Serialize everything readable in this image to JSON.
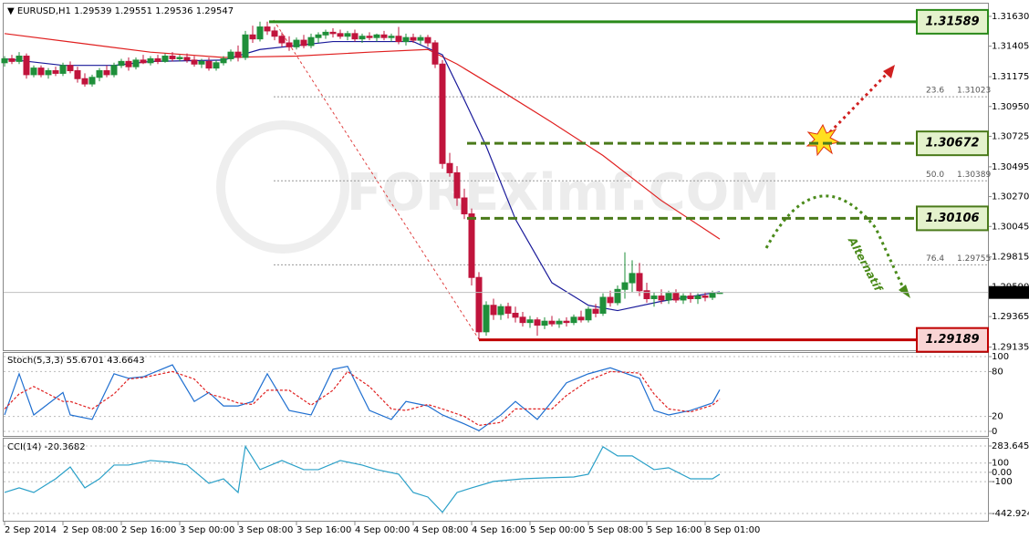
{
  "chart_data": [
    {
      "type": "candlestick",
      "title": "EURUSD,H1",
      "up_color": "#1f8f3a",
      "down_color": "#c0143c",
      "ylim": [
        1.29118,
        1.31719
      ],
      "yticks": [
        {
          "value": 1.3163,
          "label": "1.31630"
        },
        1.31405,
        1.31175,
        {
          "value": 1.3095,
          "label": "1.30950"
        },
        1.30725,
        1.30495,
        {
          "value": 1.3027,
          "label": "1.30270"
        },
        1.30045,
        1.29815,
        {
          "value": 1.2959,
          "label": "1.29590"
        },
        1.29365,
        1.29135
      ],
      "xticks": [
        {
          "value": 0,
          "label": "2 Sep 2014"
        },
        {
          "value": 8,
          "label": "2 Sep 08:00"
        },
        {
          "value": 16,
          "label": "2 Sep 16:00"
        },
        {
          "value": 24,
          "label": "3 Sep 00:00"
        },
        {
          "value": 32,
          "label": "3 Sep 08:00"
        },
        {
          "value": 40,
          "label": "3 Sep 16:00"
        },
        {
          "value": 48,
          "label": "4 Sep 00:00"
        },
        {
          "value": 56,
          "label": "4 Sep 08:00"
        },
        {
          "value": 64,
          "label": "4 Sep 16:00"
        },
        {
          "value": 72,
          "label": "5 Sep 00:00"
        },
        {
          "value": 80,
          "label": "5 Sep 08:00"
        },
        {
          "value": 88,
          "label": "5 Sep 16:00"
        },
        {
          "value": 96,
          "label": "8 Sep 01:00"
        }
      ],
      "candles": [
        [
          1.3128,
          1.3133,
          1.3125,
          1.3131
        ],
        [
          1.3131,
          1.3134,
          1.3127,
          1.3129
        ],
        [
          1.3129,
          1.3136,
          1.3127,
          1.3133
        ],
        [
          1.3133,
          1.3135,
          1.3116,
          1.3119
        ],
        [
          1.3119,
          1.3126,
          1.3117,
          1.3124
        ],
        [
          1.3124,
          1.3126,
          1.3117,
          1.3119
        ],
        [
          1.3119,
          1.3124,
          1.3116,
          1.3122
        ],
        [
          1.3122,
          1.3125,
          1.3118,
          1.312
        ],
        [
          1.312,
          1.3128,
          1.3118,
          1.3126
        ],
        [
          1.3126,
          1.3129,
          1.312,
          1.3122
        ],
        [
          1.3122,
          1.3125,
          1.3113,
          1.3116
        ],
        [
          1.3116,
          1.312,
          1.311,
          1.3112
        ],
        [
          1.3112,
          1.3119,
          1.311,
          1.3117
        ],
        [
          1.3117,
          1.3124,
          1.3114,
          1.3122
        ],
        [
          1.3122,
          1.3126,
          1.3117,
          1.3119
        ],
        [
          1.3119,
          1.3128,
          1.3117,
          1.3126
        ],
        [
          1.3126,
          1.3131,
          1.3124,
          1.3129
        ],
        [
          1.3129,
          1.3132,
          1.3122,
          1.3125
        ],
        [
          1.3125,
          1.3132,
          1.3123,
          1.313
        ],
        [
          1.313,
          1.3134,
          1.3127,
          1.3128
        ],
        [
          1.3128,
          1.3133,
          1.3126,
          1.3131
        ],
        [
          1.3131,
          1.3134,
          1.3127,
          1.3129
        ],
        [
          1.3129,
          1.3135,
          1.3128,
          1.3133
        ],
        [
          1.3133,
          1.3136,
          1.3129,
          1.3131
        ],
        [
          1.3131,
          1.3134,
          1.3129,
          1.3132
        ],
        [
          1.3132,
          1.3135,
          1.3128,
          1.313
        ],
        [
          1.313,
          1.3133,
          1.3125,
          1.3127
        ],
        [
          1.3127,
          1.3131,
          1.3124,
          1.3129
        ],
        [
          1.3129,
          1.3132,
          1.3122,
          1.3124
        ],
        [
          1.3124,
          1.313,
          1.3122,
          1.3128
        ],
        [
          1.3128,
          1.3133,
          1.3126,
          1.3131
        ],
        [
          1.3131,
          1.3138,
          1.3129,
          1.3136
        ],
        [
          1.3136,
          1.3141,
          1.3129,
          1.3132
        ],
        [
          1.3132,
          1.3152,
          1.313,
          1.3149
        ],
        [
          1.3149,
          1.3156,
          1.3143,
          1.3146
        ],
        [
          1.3146,
          1.3159,
          1.3144,
          1.3155
        ],
        [
          1.3155,
          1.3159,
          1.3149,
          1.3152
        ],
        [
          1.3152,
          1.3155,
          1.3145,
          1.3148
        ],
        [
          1.3148,
          1.3151,
          1.314,
          1.3143
        ],
        [
          1.3143,
          1.3148,
          1.3137,
          1.314
        ],
        [
          1.314,
          1.3147,
          1.3138,
          1.3145
        ],
        [
          1.3145,
          1.3149,
          1.3139,
          1.3141
        ],
        [
          1.3141,
          1.315,
          1.3139,
          1.3147
        ],
        [
          1.3147,
          1.3151,
          1.3143,
          1.3149
        ],
        [
          1.3149,
          1.3153,
          1.3146,
          1.3151
        ],
        [
          1.3151,
          1.3154,
          1.3147,
          1.315
        ],
        [
          1.315,
          1.3153,
          1.3146,
          1.3148
        ],
        [
          1.3148,
          1.3152,
          1.3145,
          1.315
        ],
        [
          1.315,
          1.3153,
          1.3144,
          1.3146
        ],
        [
          1.3146,
          1.315,
          1.3143,
          1.3148
        ],
        [
          1.3148,
          1.3151,
          1.3145,
          1.3147
        ],
        [
          1.3147,
          1.315,
          1.3144,
          1.3149
        ],
        [
          1.3149,
          1.3152,
          1.3145,
          1.3147
        ],
        [
          1.3147,
          1.315,
          1.3144,
          1.3148
        ],
        [
          1.3148,
          1.3155,
          1.3142,
          1.3144
        ],
        [
          1.3144,
          1.315,
          1.3141,
          1.3147
        ],
        [
          1.3147,
          1.315,
          1.3143,
          1.3145
        ],
        [
          1.3145,
          1.3149,
          1.3142,
          1.3147
        ],
        [
          1.3147,
          1.3149,
          1.314,
          1.3143
        ],
        [
          1.3143,
          1.3145,
          1.3124,
          1.3127
        ],
        [
          1.3127,
          1.313,
          1.3048,
          1.3052
        ],
        [
          1.3052,
          1.306,
          1.3042,
          1.3045
        ],
        [
          1.3045,
          1.305,
          1.302,
          1.3026
        ],
        [
          1.3026,
          1.3033,
          1.301,
          1.3014
        ],
        [
          1.3014,
          1.3018,
          1.296,
          1.2966
        ],
        [
          1.2966,
          1.297,
          1.2919,
          1.2925
        ],
        [
          1.2925,
          1.2948,
          1.2922,
          1.2945
        ],
        [
          1.2945,
          1.295,
          1.2934,
          1.2938
        ],
        [
          1.2938,
          1.2946,
          1.2934,
          1.2944
        ],
        [
          1.2944,
          1.2947,
          1.2935,
          1.2939
        ],
        [
          1.2939,
          1.2944,
          1.2932,
          1.2936
        ],
        [
          1.2936,
          1.294,
          1.2929,
          1.2932
        ],
        [
          1.2932,
          1.2937,
          1.2928,
          1.2934
        ],
        [
          1.2934,
          1.2936,
          1.2922,
          1.293
        ],
        [
          1.293,
          1.2936,
          1.2927,
          1.2933
        ],
        [
          1.2933,
          1.2937,
          1.2929,
          1.2931
        ],
        [
          1.2931,
          1.2935,
          1.2928,
          1.2933
        ],
        [
          1.2933,
          1.2936,
          1.2929,
          1.2932
        ],
        [
          1.2932,
          1.2938,
          1.293,
          1.2936
        ],
        [
          1.2936,
          1.2941,
          1.2932,
          1.2934
        ],
        [
          1.2934,
          1.2944,
          1.2932,
          1.2942
        ],
        [
          1.2942,
          1.2946,
          1.2936,
          1.2939
        ],
        [
          1.2939,
          1.2954,
          1.2937,
          1.2951
        ],
        [
          1.2951,
          1.2956,
          1.2944,
          1.2947
        ],
        [
          1.2947,
          1.296,
          1.2945,
          1.2957
        ],
        [
          1.2957,
          1.2985,
          1.295,
          1.2962
        ],
        [
          1.2962,
          1.2979,
          1.2955,
          1.2969
        ],
        [
          1.2969,
          1.2977,
          1.2952,
          1.2956
        ],
        [
          1.2956,
          1.2962,
          1.2947,
          1.295
        ],
        [
          1.295,
          1.2955,
          1.2944,
          1.2952
        ],
        [
          1.2952,
          1.2957,
          1.2946,
          1.2949
        ],
        [
          1.2949,
          1.2956,
          1.2946,
          1.2954
        ],
        [
          1.2954,
          1.2957,
          1.2947,
          1.2949
        ],
        [
          1.2949,
          1.2954,
          1.2946,
          1.2952
        ],
        [
          1.2952,
          1.2955,
          1.2947,
          1.295
        ],
        [
          1.295,
          1.2954,
          1.2946,
          1.2952
        ],
        [
          1.2952,
          1.2955,
          1.2948,
          1.2951
        ],
        [
          1.2951,
          1.2956,
          1.2949,
          1.2954
        ],
        [
          1.29539,
          1.29551,
          1.29536,
          1.29547
        ]
      ],
      "indicators": [
        {
          "color": "#e02020",
          "x": [
            0,
            10,
            20,
            30,
            40,
            50,
            58,
            62,
            68,
            75,
            82,
            90,
            98
          ],
          "values": [
            1.315,
            1.3143,
            1.3136,
            1.3132,
            1.3133,
            1.3136,
            1.3138,
            1.3127,
            1.3107,
            1.3083,
            1.3058,
            1.3024,
            1.2995
          ]
        },
        {
          "color": "#1a1a9a",
          "x": [
            0,
            8,
            15,
            20,
            30,
            35,
            45,
            56,
            60,
            63,
            66,
            70,
            75,
            80,
            84,
            90,
            98
          ],
          "values": [
            1.3131,
            1.3126,
            1.3126,
            1.3129,
            1.313,
            1.3138,
            1.3144,
            1.3144,
            1.3134,
            1.31,
            1.3065,
            1.301,
            1.2962,
            1.2945,
            1.2941,
            1.2948,
            1.29552
          ]
        }
      ],
      "levels": [
        {
          "value": 1.31589,
          "color": "#2a8a1a",
          "style": "solid"
        },
        {
          "value": 1.30672,
          "color": "#4a7a1a",
          "style": "dashed"
        },
        {
          "value": 1.30106,
          "color": "#4a7a1a",
          "style": "dashed"
        },
        {
          "value": 1.29189,
          "color": "#c00000",
          "style": "solid"
        }
      ],
      "fibonacci": [
        {
          "level": 23.6,
          "price": 1.31023
        },
        {
          "level": {
            "value": 50,
            "label": "50.0"
          },
          "price": 1.30389
        },
        {
          "level": 76.4,
          "price": 1.29755
        }
      ],
      "annotations": [
        "Alternatif",
        "FOREXimf.COM"
      ]
    },
    {
      "type": "line",
      "title": "Stoch(5,3,3)",
      "ylim": [
        0,
        100
      ],
      "yticks": [
        100,
        80,
        20,
        0
      ],
      "series": [
        {
          "color": "#1f6fd0",
          "x": [
            0,
            2,
            4,
            8,
            9,
            12,
            15,
            17,
            19,
            23,
            26,
            28,
            30,
            32,
            34,
            36,
            39,
            42,
            45,
            47,
            50,
            53,
            55,
            58,
            60,
            63,
            65,
            68,
            70,
            73,
            75,
            77,
            80,
            83,
            87,
            89,
            91,
            94,
            97,
            98
          ],
          "values": [
            22,
            77,
            22,
            52,
            22,
            16,
            77,
            71,
            73,
            89,
            40,
            52,
            34,
            34,
            40,
            77,
            28,
            22,
            83,
            87,
            28,
            16,
            40,
            34,
            22,
            10,
            1,
            22,
            40,
            16,
            40,
            65,
            77,
            85,
            71,
            28,
            22,
            28,
            38,
            55.6701
          ]
        },
        {
          "color": "#e02020",
          "style": "dashed",
          "x": [
            0,
            2,
            4,
            8,
            9,
            12,
            15,
            17,
            19,
            23,
            26,
            28,
            30,
            32,
            34,
            36,
            39,
            42,
            45,
            47,
            50,
            53,
            55,
            58,
            60,
            63,
            65,
            68,
            70,
            73,
            75,
            77,
            80,
            83,
            87,
            89,
            91,
            94,
            97,
            98
          ],
          "values": [
            30,
            50,
            60,
            40,
            40,
            30,
            50,
            70,
            72,
            80,
            70,
            50,
            45,
            38,
            36,
            55,
            55,
            35,
            55,
            80,
            60,
            30,
            28,
            36,
            30,
            20,
            8,
            12,
            30,
            30,
            30,
            48,
            68,
            80,
            78,
            50,
            30,
            26,
            35,
            43.6643
          ]
        }
      ]
    },
    {
      "type": "line",
      "title": "CCI(14)",
      "ylim": [
        -442.9245,
        283.6455
      ],
      "yticks": [
        283.6455,
        100,
        {
          "value": 0,
          "label": "0.00"
        },
        -100,
        -442.9245
      ],
      "series": [
        {
          "color": "#2aa0c8",
          "x": [
            0,
            2,
            4,
            7,
            9,
            11,
            13,
            15,
            17,
            20,
            23,
            25,
            28,
            30,
            32,
            33,
            35,
            38,
            41,
            43,
            46,
            49,
            51,
            54,
            56,
            58,
            60,
            62,
            64,
            67,
            71,
            74,
            78,
            80,
            82,
            84,
            86,
            89,
            91,
            94,
            97,
            98
          ],
          "values": [
            -217,
            -167,
            -217,
            -70,
            58,
            -167,
            -70,
            78,
            78,
            127,
            108,
            78,
            -119,
            -70,
            -217,
            280,
            29,
            127,
            29,
            29,
            127,
            78,
            29,
            -20,
            -217,
            -266,
            -430,
            -217,
            -167,
            -98,
            -70,
            -60,
            -50,
            -20,
            275,
            177,
            177,
            29,
            49,
            -70,
            -70,
            -20.3682
          ]
        }
      ]
    }
  ]
}
